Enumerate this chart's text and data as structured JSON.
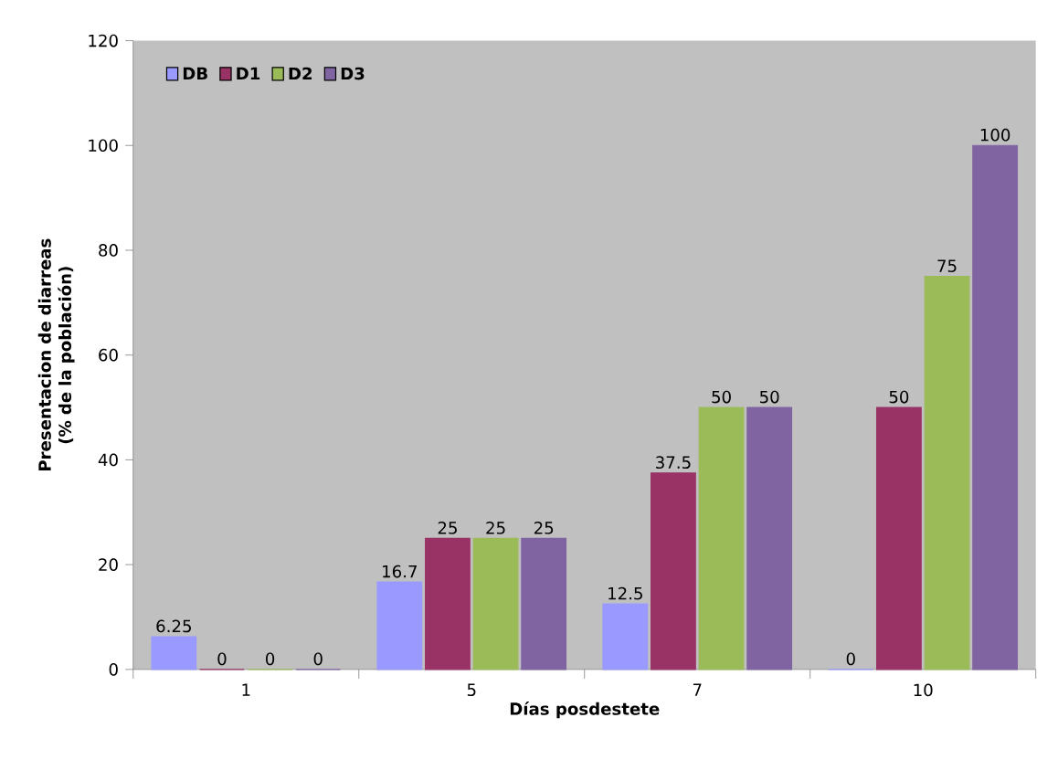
{
  "chart_data": {
    "type": "bar",
    "xlabel": "Días posdestete",
    "ylabel": "Presentacion de diarreas (% de la población)",
    "categories": [
      "1",
      "5",
      "7",
      "10"
    ],
    "series": [
      {
        "name": "DB",
        "color": "#9999ff",
        "values": [
          6.25,
          16.7,
          12.5,
          0
        ]
      },
      {
        "name": "D1",
        "color": "#993366",
        "values": [
          0,
          25,
          37.5,
          50
        ]
      },
      {
        "name": "D2",
        "color": "#9bbb59",
        "values": [
          0,
          25,
          50,
          75
        ]
      },
      {
        "name": "D3",
        "color": "#8064a2",
        "values": [
          0,
          25,
          50,
          100
        ]
      }
    ],
    "ylim": [
      0,
      120
    ],
    "yticks": [
      0,
      20,
      40,
      60,
      80,
      100,
      120
    ],
    "data_labels": true,
    "legend": "top left",
    "grid": false
  }
}
